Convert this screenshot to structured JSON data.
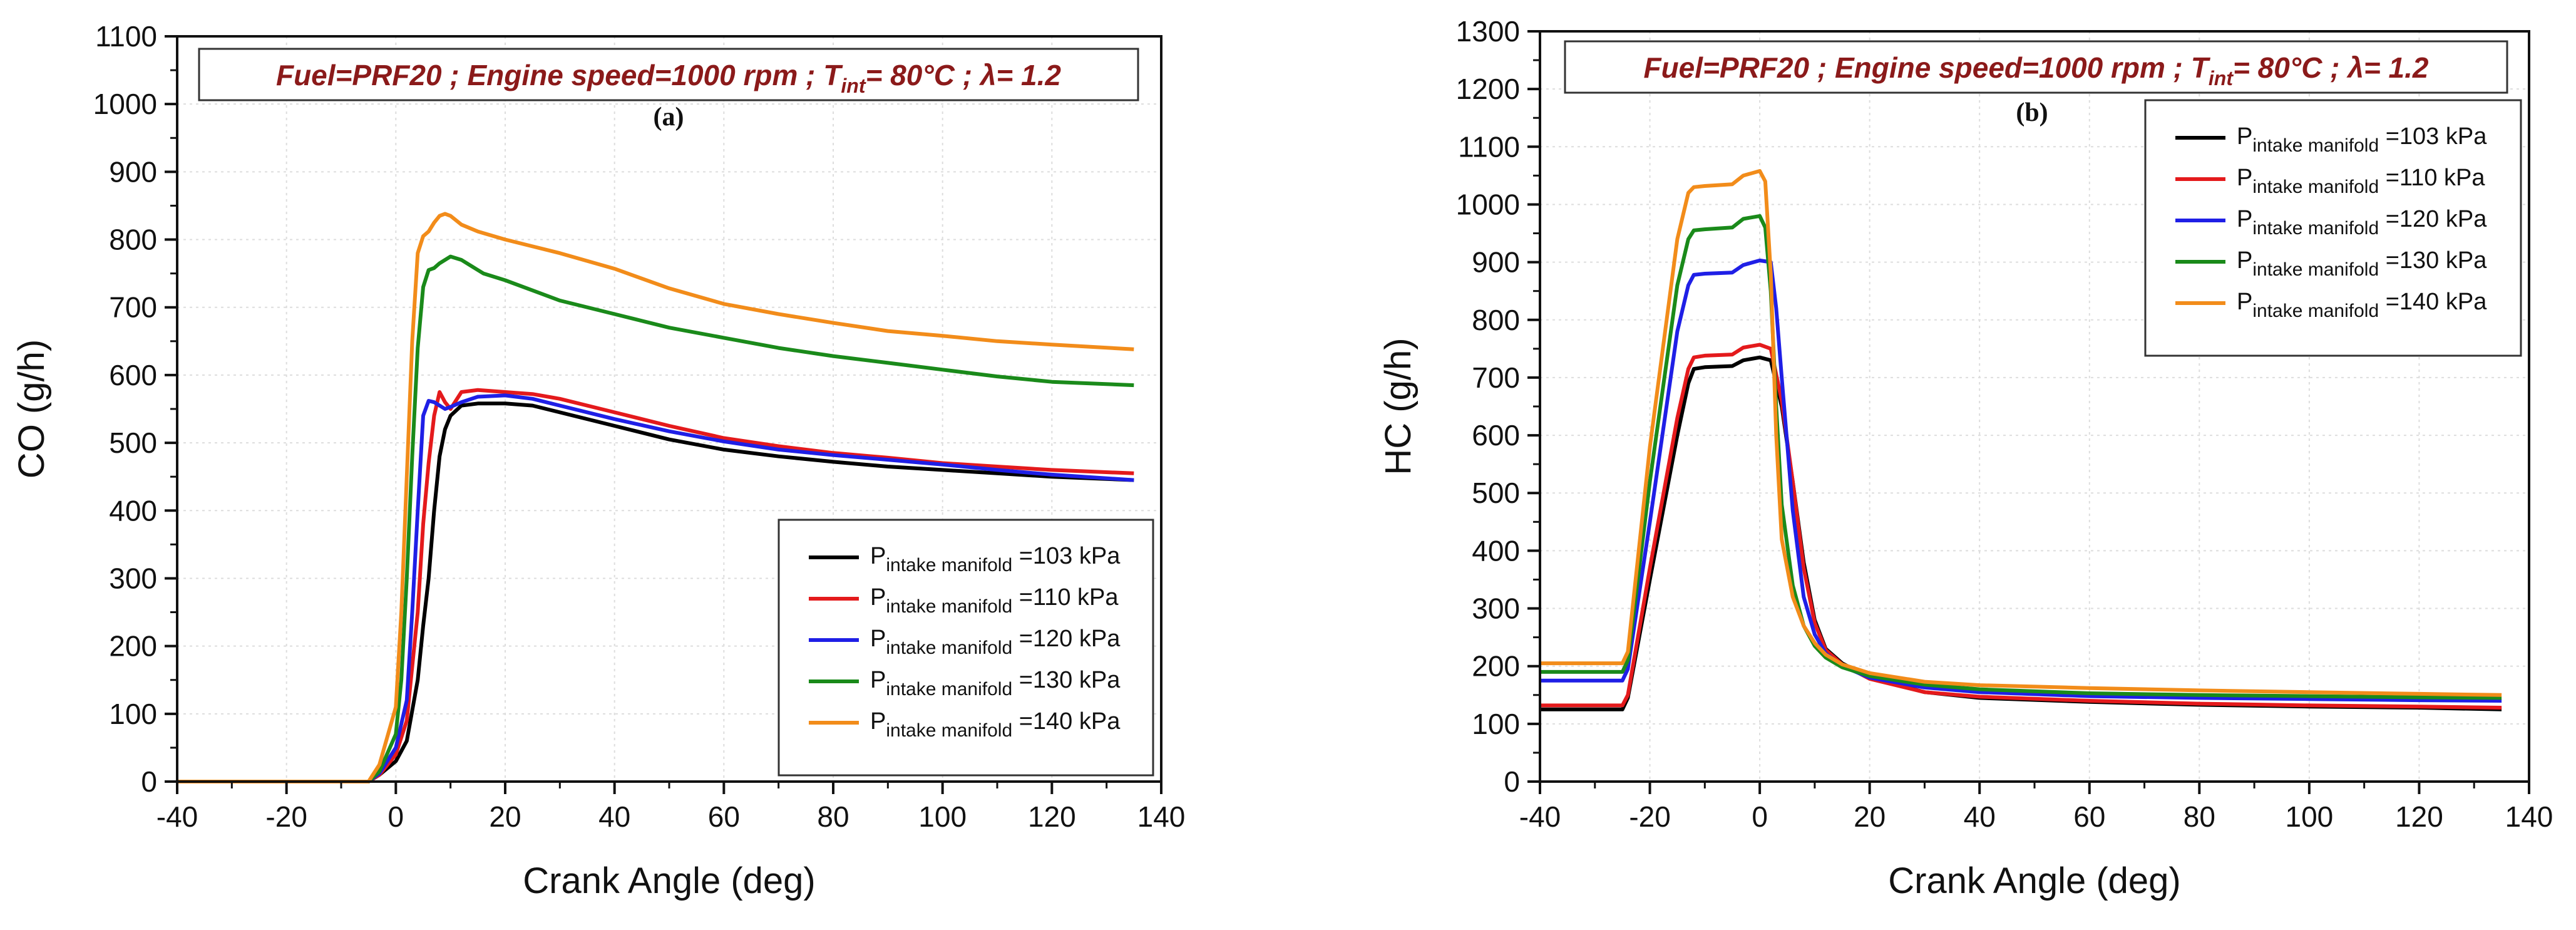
{
  "colors": {
    "series": [
      "#000000",
      "#e41a1c",
      "#1f1fe6",
      "#1a8a1a",
      "#f28c1a"
    ],
    "banner": "#8b1a1a",
    "grid": "#dddddd"
  },
  "chart_data": [
    {
      "type": "line",
      "panel_label": "(a)",
      "banner": {
        "fuel": "Fuel=PRF20",
        "sep": ";",
        "speed": "Engine speed=1000 rpm",
        "tint_prefix": "T",
        "tint_sub": "int",
        "tint_value": "= 80°C",
        "lambda": "λ= 1.2"
      },
      "xlabel": "Crank Angle (deg)",
      "ylabel": "CO (g/h)",
      "xlim": [
        -40,
        140
      ],
      "ylim": [
        0,
        1100
      ],
      "xticks": [
        -40,
        -20,
        0,
        20,
        40,
        60,
        80,
        100,
        120,
        140
      ],
      "yticks": [
        0,
        100,
        200,
        300,
        400,
        500,
        600,
        700,
        800,
        900,
        1000,
        1100
      ],
      "legend_position": "bottom-right",
      "series": [
        {
          "name": "103 kPa",
          "label_main": "P",
          "label_sub": "intake manifold",
          "label_value": "=103 kPa",
          "x": [
            -40,
            -5,
            -3,
            0,
            2,
            4,
            5,
            6,
            7,
            8,
            9,
            10,
            12,
            15,
            20,
            25,
            30,
            40,
            50,
            60,
            70,
            80,
            90,
            100,
            110,
            120,
            135
          ],
          "y": [
            0,
            0,
            10,
            30,
            60,
            150,
            230,
            300,
            400,
            480,
            520,
            540,
            555,
            558,
            558,
            555,
            545,
            525,
            505,
            490,
            480,
            472,
            465,
            460,
            455,
            450,
            445
          ]
        },
        {
          "name": "110 kPa",
          "label_main": "P",
          "label_sub": "intake manifold",
          "label_value": "=110 kPa",
          "x": [
            -40,
            -5,
            -3,
            0,
            2,
            4,
            5,
            6,
            7,
            8,
            9,
            10,
            12,
            15,
            20,
            25,
            30,
            40,
            50,
            60,
            70,
            80,
            90,
            100,
            110,
            120,
            135
          ],
          "y": [
            0,
            0,
            10,
            40,
            90,
            250,
            380,
            470,
            540,
            575,
            560,
            550,
            575,
            578,
            575,
            572,
            565,
            545,
            525,
            507,
            495,
            485,
            478,
            470,
            465,
            460,
            455
          ]
        },
        {
          "name": "120 kPa",
          "label_main": "P",
          "label_sub": "intake manifold",
          "label_value": "=120 kPa",
          "x": [
            -40,
            -5,
            -3,
            0,
            2,
            3,
            4,
            5,
            6,
            7,
            8,
            9,
            10,
            12,
            15,
            20,
            25,
            30,
            40,
            50,
            60,
            70,
            80,
            90,
            100,
            110,
            120,
            135
          ],
          "y": [
            0,
            0,
            12,
            50,
            120,
            250,
            400,
            540,
            562,
            560,
            555,
            550,
            553,
            560,
            568,
            570,
            565,
            555,
            535,
            517,
            502,
            490,
            482,
            475,
            468,
            460,
            453,
            445
          ]
        },
        {
          "name": "130 kPa",
          "label_main": "P",
          "label_sub": "intake manifold",
          "label_value": "=130 kPa",
          "x": [
            -40,
            -5,
            -3,
            0,
            1,
            2,
            3,
            4,
            5,
            6,
            7,
            8,
            10,
            12,
            14,
            16,
            20,
            25,
            30,
            40,
            50,
            60,
            70,
            80,
            90,
            100,
            110,
            120,
            135
          ],
          "y": [
            0,
            0,
            15,
            70,
            150,
            300,
            480,
            640,
            730,
            755,
            758,
            765,
            775,
            770,
            760,
            750,
            740,
            725,
            710,
            690,
            670,
            655,
            640,
            628,
            618,
            608,
            598,
            590,
            585
          ]
        },
        {
          "name": "140 kPa",
          "label_main": "P",
          "label_sub": "intake manifold",
          "label_value": "=140 kPa",
          "x": [
            -40,
            -5,
            -3,
            0,
            1,
            2,
            3,
            4,
            5,
            6,
            7,
            8,
            9,
            10,
            12,
            15,
            20,
            25,
            30,
            40,
            50,
            60,
            70,
            80,
            90,
            100,
            110,
            120,
            135
          ],
          "y": [
            0,
            0,
            25,
            110,
            250,
            450,
            650,
            780,
            805,
            812,
            825,
            835,
            838,
            835,
            822,
            812,
            800,
            790,
            780,
            757,
            728,
            705,
            690,
            677,
            665,
            658,
            650,
            645,
            638
          ]
        }
      ]
    },
    {
      "type": "line",
      "panel_label": "(b)",
      "banner": {
        "fuel": "Fuel=PRF20",
        "sep": ";",
        "speed": "Engine speed=1000 rpm",
        "tint_prefix": "T",
        "tint_sub": "int",
        "tint_value": "= 80°C",
        "lambda": "λ= 1.2"
      },
      "xlabel": "Crank Angle (deg)",
      "ylabel": "HC (g/h)",
      "xlim": [
        -40,
        140
      ],
      "ylim": [
        0,
        1300
      ],
      "xticks": [
        -40,
        -20,
        0,
        20,
        40,
        60,
        80,
        100,
        120,
        140
      ],
      "yticks": [
        0,
        100,
        200,
        300,
        400,
        500,
        600,
        700,
        800,
        900,
        1000,
        1100,
        1200,
        1300
      ],
      "legend_position": "top-right",
      "series": [
        {
          "name": "103 kPa",
          "label_main": "P",
          "label_sub": "intake manifold",
          "label_value": "=103 kPa",
          "x": [
            -40,
            -25,
            -24,
            -20,
            -15,
            -13,
            -12,
            -10,
            -5,
            -3,
            0,
            2,
            4,
            6,
            8,
            10,
            12,
            15,
            20,
            30,
            40,
            60,
            80,
            100,
            120,
            135
          ],
          "y": [
            125,
            125,
            145,
            350,
            600,
            690,
            715,
            718,
            720,
            730,
            735,
            730,
            650,
            520,
            380,
            280,
            230,
            205,
            180,
            155,
            145,
            138,
            133,
            130,
            128,
            125
          ]
        },
        {
          "name": "110 kPa",
          "label_main": "P",
          "label_sub": "intake manifold",
          "label_value": "=110 kPa",
          "x": [
            -40,
            -25,
            -24,
            -20,
            -15,
            -13,
            -12,
            -10,
            -5,
            -3,
            0,
            2,
            4,
            6,
            8,
            10,
            12,
            15,
            20,
            30,
            40,
            60,
            80,
            100,
            120,
            135
          ],
          "y": [
            132,
            132,
            150,
            370,
            630,
            715,
            735,
            738,
            740,
            752,
            757,
            750,
            660,
            520,
            370,
            275,
            228,
            203,
            178,
            155,
            147,
            140,
            135,
            132,
            130,
            128
          ]
        },
        {
          "name": "120 kPa",
          "label_main": "P",
          "label_sub": "intake manifold",
          "label_value": "=120 kPa",
          "x": [
            -40,
            -25,
            -24,
            -20,
            -15,
            -13,
            -12,
            -10,
            -5,
            -3,
            0,
            2,
            3,
            4,
            6,
            8,
            10,
            12,
            15,
            20,
            30,
            40,
            60,
            80,
            100,
            120,
            135
          ],
          "y": [
            175,
            175,
            195,
            450,
            780,
            860,
            878,
            880,
            882,
            895,
            903,
            900,
            820,
            700,
            470,
            320,
            255,
            222,
            200,
            180,
            163,
            155,
            148,
            145,
            143,
            141,
            140
          ]
        },
        {
          "name": "130 kPa",
          "label_main": "P",
          "label_sub": "intake manifold",
          "label_value": "=130 kPa",
          "x": [
            -40,
            -25,
            -24,
            -20,
            -15,
            -13,
            -12,
            -10,
            -5,
            -3,
            0,
            1,
            2,
            3,
            4,
            6,
            8,
            10,
            12,
            15,
            20,
            30,
            40,
            60,
            80,
            100,
            120,
            135
          ],
          "y": [
            190,
            190,
            210,
            520,
            860,
            940,
            955,
            957,
            960,
            975,
            980,
            960,
            850,
            650,
            480,
            340,
            270,
            235,
            215,
            198,
            183,
            168,
            160,
            153,
            150,
            148,
            146,
            145
          ]
        },
        {
          "name": "140 kPa",
          "label_main": "P",
          "label_sub": "intake manifold",
          "label_value": "=140 kPa",
          "x": [
            -40,
            -25,
            -24,
            -20,
            -15,
            -13,
            -12,
            -10,
            -5,
            -3,
            0,
            1,
            2,
            3,
            4,
            6,
            8,
            10,
            12,
            15,
            20,
            30,
            40,
            60,
            80,
            100,
            120,
            135
          ],
          "y": [
            205,
            205,
            225,
            580,
            940,
            1020,
            1030,
            1032,
            1035,
            1050,
            1058,
            1040,
            880,
            600,
            420,
            320,
            270,
            240,
            220,
            203,
            188,
            173,
            167,
            162,
            158,
            155,
            152,
            150
          ]
        }
      ]
    }
  ]
}
